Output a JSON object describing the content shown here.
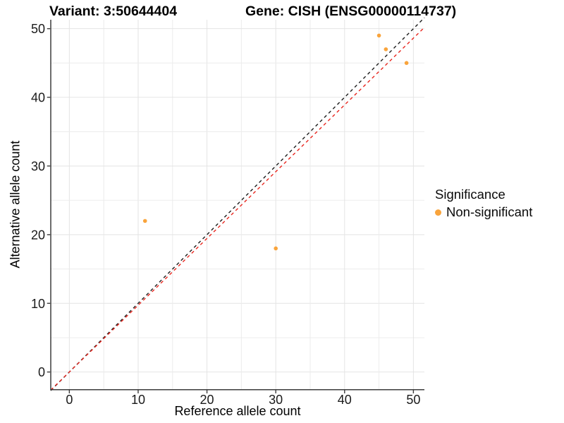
{
  "chart_data": {
    "type": "scatter",
    "title_left": "Variant: 3:50644404",
    "title_right": "Gene: CISH (ENSG00000114737)",
    "xlabel": "Reference allele count",
    "ylabel": "Alternative allele count",
    "xlim": [
      -2.7,
      51.6
    ],
    "ylim": [
      -2.5,
      51.3
    ],
    "ticks": [
      0,
      10,
      20,
      30,
      40,
      50
    ],
    "gridline_step": 5,
    "grid_on": true,
    "points": [
      {
        "x": 11,
        "y": 22
      },
      {
        "x": 30,
        "y": 18
      },
      {
        "x": 45,
        "y": 49
      },
      {
        "x": 46,
        "y": 47
      },
      {
        "x": 49,
        "y": 45
      }
    ],
    "point_color": "#F9A43C",
    "point_radius": 2.8,
    "lines": [
      {
        "name": "identity-line",
        "slope": 1.0,
        "intercept": 0,
        "color": "#1c1c1c",
        "style": "dashed"
      },
      {
        "name": "fitted-line",
        "slope": 0.9724,
        "intercept": 0,
        "color": "#E8261E",
        "style": "dashed"
      }
    ],
    "colors": {
      "grid_major": "#E4E4E4",
      "grid_minor": "#ECECEC",
      "axis_line": "#3c3c3c",
      "tick_text": "#1a1a1a"
    },
    "legend": {
      "position": "right",
      "title": "Significance",
      "items": [
        {
          "label": "Non-significant",
          "color": "#F9A43C"
        }
      ]
    }
  }
}
